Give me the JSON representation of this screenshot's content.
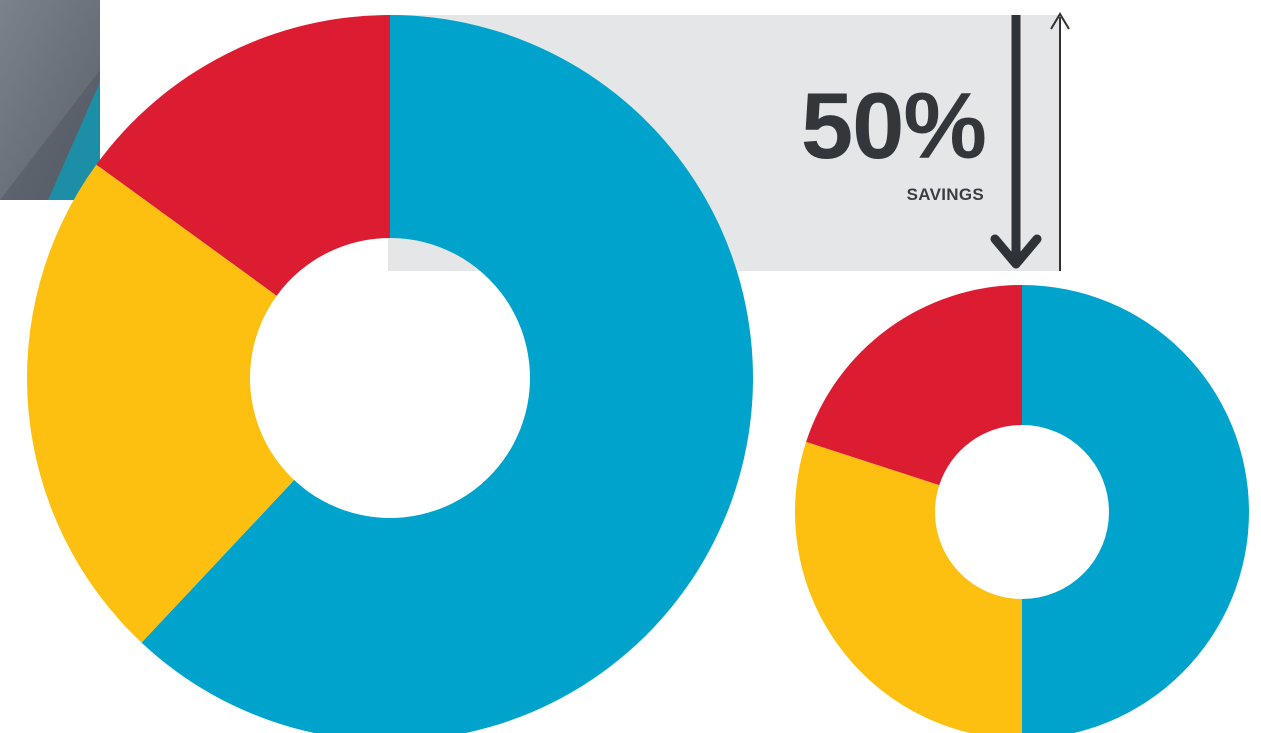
{
  "colors": {
    "blue": "#00a3cc",
    "yellow": "#fdc010",
    "red": "#dc1c30",
    "callout_panel": "#e5e6e8",
    "arrow": "#2f3338",
    "corner_gray": "#676d78",
    "corner_teal": "#1c8fa6"
  },
  "callout": {
    "value": "50%",
    "label": "SAVINGS"
  },
  "chart_data": [
    {
      "type": "pie",
      "variant": "donut",
      "slices": [
        {
          "value": 62,
          "color": "#00a3cc"
        },
        {
          "value": 23,
          "color": "#fdc010"
        },
        {
          "value": 15,
          "color": "#dc1c30"
        }
      ]
    },
    {
      "type": "pie",
      "variant": "donut",
      "slices": [
        {
          "value": 50,
          "color": "#00a3cc"
        },
        {
          "value": 30,
          "color": "#fdc010"
        },
        {
          "value": 20,
          "color": "#dc1c30"
        }
      ]
    }
  ]
}
